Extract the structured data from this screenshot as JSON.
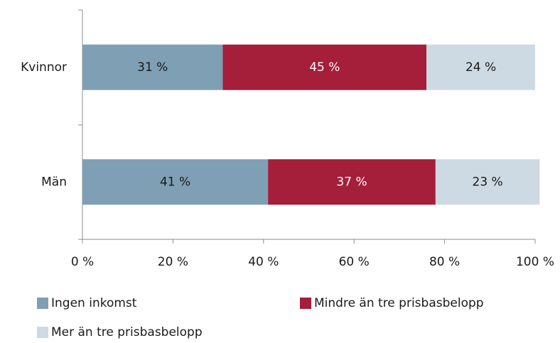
{
  "chart_data": {
    "type": "stacked_barh",
    "categories": [
      "Kvinnor",
      "Män"
    ],
    "series": [
      {
        "name": "Ingen inkomst",
        "color": "#7f9fb5",
        "values": [
          31,
          41
        ],
        "value_labels": [
          "31 %",
          "41 %"
        ]
      },
      {
        "name": "Mindre än tre prisbasbelopp",
        "color": "#a51e3a",
        "values": [
          45,
          37
        ],
        "value_labels": [
          "45 %",
          "37 %"
        ]
      },
      {
        "name": "Mer än tre prisbasbelopp",
        "color": "#cddae3",
        "values": [
          24,
          23
        ],
        "value_labels": [
          "24 %",
          "23 %"
        ]
      }
    ],
    "xlim": [
      0,
      100
    ],
    "xticks": [
      {
        "value": 0,
        "label": "0 %"
      },
      {
        "value": 20,
        "label": "20 %"
      },
      {
        "value": 40,
        "label": "40 %"
      },
      {
        "value": 60,
        "label": "60 %"
      },
      {
        "value": 80,
        "label": "80 %"
      },
      {
        "value": 100,
        "label": "100 %"
      }
    ],
    "grid": false,
    "legend": "bottom"
  }
}
